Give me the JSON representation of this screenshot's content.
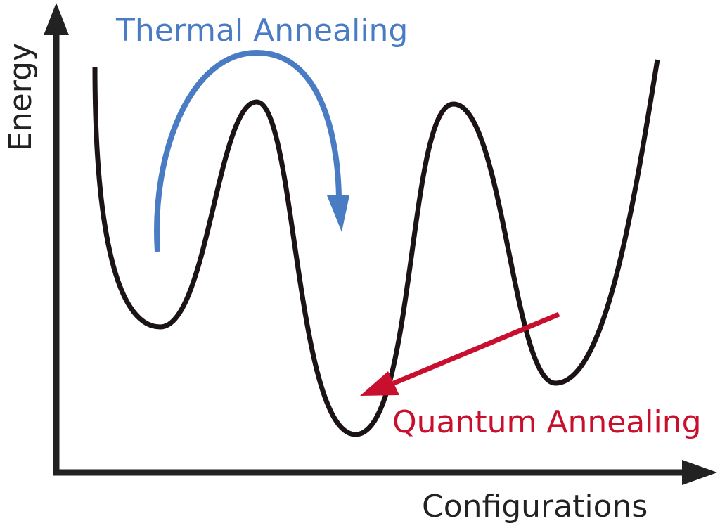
{
  "diagram": {
    "y_axis_label": "Energy",
    "x_axis_label": "Configurations",
    "thermal_label": "Thermal Annealing",
    "quantum_label": "Quantum Annealing"
  }
}
